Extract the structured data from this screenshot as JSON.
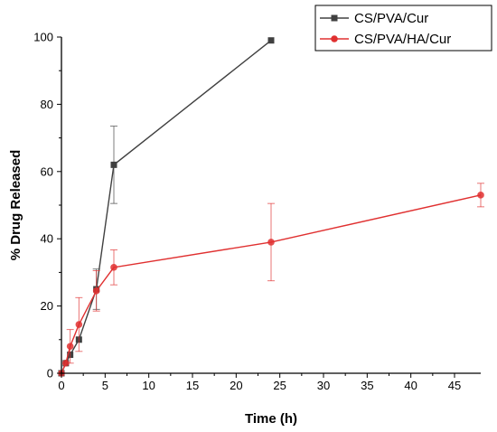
{
  "chart_data": {
    "type": "line",
    "xlabel": "Time (h)",
    "ylabel": "% Drug Released",
    "xlim": [
      0,
      48
    ],
    "ylim": [
      0,
      100
    ],
    "xticks": [
      0,
      5,
      10,
      15,
      20,
      25,
      30,
      35,
      40,
      45
    ],
    "yticks": [
      0,
      20,
      40,
      60,
      80,
      100
    ],
    "grid": false,
    "legend_position": "top-right",
    "series": [
      {
        "name": "CS/PVA/Cur",
        "color": "#404040",
        "marker": "square",
        "x": [
          0,
          0.5,
          1,
          2,
          4,
          6,
          24
        ],
        "y": [
          0,
          3,
          5.5,
          10,
          25,
          62,
          99
        ],
        "err": [
          0,
          0,
          0,
          0,
          6,
          11.5,
          0
        ]
      },
      {
        "name": "CS/PVA/HA/Cur",
        "color": "#e03030",
        "marker": "circle",
        "x": [
          0,
          0.5,
          1,
          2,
          4,
          6,
          24,
          48
        ],
        "y": [
          0,
          3,
          8,
          14.5,
          24.5,
          31.5,
          39,
          53
        ],
        "err": [
          0,
          0,
          5,
          8,
          6,
          5.2,
          11.5,
          3.5
        ]
      }
    ]
  }
}
